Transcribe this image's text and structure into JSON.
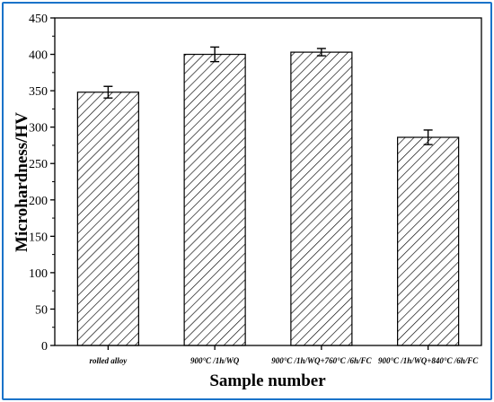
{
  "chart_data": {
    "type": "bar",
    "categories": [
      "rolled alloy",
      "900°C /1h/WQ",
      "900°C /1h/WQ+760°C /6h/FC",
      "900°C /1h/WQ+840°C /6h/FC"
    ],
    "values": [
      348,
      400,
      403,
      286
    ],
    "errors": [
      8,
      10,
      5,
      10
    ],
    "xlabel": "Sample number",
    "ylabel": "Microhardness/HV",
    "ylim": [
      0,
      450
    ],
    "yticks": [
      0,
      50,
      100,
      150,
      200,
      250,
      300,
      350,
      400,
      450
    ],
    "bar_fill": "hatched",
    "grid": false,
    "frame_color": "#1a73c9"
  }
}
